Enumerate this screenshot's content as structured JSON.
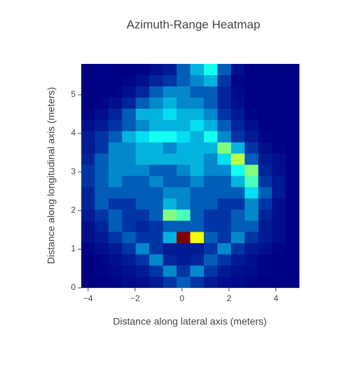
{
  "chart_data": {
    "type": "heatmap",
    "title": "Azimuth-Range Heatmap",
    "x_label": "Distance along lateral axis (meters)",
    "y_label": "Distance along longitudinal axis (meters)",
    "colorscale": "Jet",
    "x": [
      -4.0,
      -3.42,
      -2.84,
      -2.26,
      -1.68,
      -1.1,
      -0.52,
      0.06,
      0.64,
      1.22,
      1.8,
      2.38,
      2.96,
      3.54,
      4.12,
      4.7
    ],
    "y": [
      0.15,
      0.44,
      0.73,
      1.02,
      1.31,
      1.6,
      1.89,
      2.18,
      2.47,
      2.76,
      3.05,
      3.34,
      3.63,
      3.92,
      4.21,
      4.5,
      4.79,
      5.08,
      5.37,
      5.66
    ],
    "z": [
      [
        0.05,
        0.05,
        0.06,
        0.07,
        0.08,
        0.1,
        0.15,
        0.2,
        0.15,
        0.1,
        0.08,
        0.07,
        0.06,
        0.05,
        0.05,
        0.05
      ],
      [
        0.05,
        0.06,
        0.07,
        0.08,
        0.1,
        0.15,
        0.25,
        0.15,
        0.25,
        0.15,
        0.1,
        0.08,
        0.07,
        0.06,
        0.05,
        0.05
      ],
      [
        0.05,
        0.06,
        0.08,
        0.1,
        0.15,
        0.25,
        0.12,
        0.1,
        0.12,
        0.2,
        0.15,
        0.1,
        0.08,
        0.06,
        0.05,
        0.05
      ],
      [
        0.06,
        0.08,
        0.1,
        0.15,
        0.25,
        0.15,
        0.1,
        0.1,
        0.1,
        0.15,
        0.25,
        0.15,
        0.1,
        0.08,
        0.06,
        0.05
      ],
      [
        0.08,
        0.1,
        0.15,
        0.2,
        0.15,
        0.15,
        0.3,
        0.95,
        0.6,
        0.2,
        0.15,
        0.25,
        0.15,
        0.1,
        0.08,
        0.05
      ],
      [
        0.08,
        0.12,
        0.2,
        0.15,
        0.12,
        0.15,
        0.2,
        0.2,
        0.2,
        0.15,
        0.15,
        0.2,
        0.2,
        0.1,
        0.08,
        0.05
      ],
      [
        0.1,
        0.15,
        0.2,
        0.15,
        0.15,
        0.2,
        0.5,
        0.45,
        0.2,
        0.15,
        0.15,
        0.2,
        0.25,
        0.12,
        0.08,
        0.05
      ],
      [
        0.12,
        0.2,
        0.15,
        0.15,
        0.2,
        0.2,
        0.3,
        0.25,
        0.2,
        0.2,
        0.15,
        0.15,
        0.25,
        0.15,
        0.08,
        0.05
      ],
      [
        0.12,
        0.2,
        0.2,
        0.2,
        0.2,
        0.2,
        0.25,
        0.25,
        0.2,
        0.2,
        0.2,
        0.2,
        0.35,
        0.2,
        0.1,
        0.05
      ],
      [
        0.15,
        0.2,
        0.25,
        0.2,
        0.2,
        0.25,
        0.2,
        0.2,
        0.25,
        0.2,
        0.2,
        0.3,
        0.45,
        0.15,
        0.1,
        0.05
      ],
      [
        0.15,
        0.2,
        0.25,
        0.25,
        0.25,
        0.2,
        0.2,
        0.25,
        0.3,
        0.25,
        0.25,
        0.4,
        0.5,
        0.12,
        0.08,
        0.05
      ],
      [
        0.12,
        0.2,
        0.25,
        0.25,
        0.3,
        0.3,
        0.3,
        0.3,
        0.3,
        0.25,
        0.35,
        0.55,
        0.2,
        0.1,
        0.08,
        0.05
      ],
      [
        0.1,
        0.15,
        0.25,
        0.25,
        0.3,
        0.3,
        0.25,
        0.3,
        0.3,
        0.3,
        0.5,
        0.3,
        0.15,
        0.08,
        0.06,
        0.05
      ],
      [
        0.1,
        0.15,
        0.2,
        0.3,
        0.35,
        0.4,
        0.4,
        0.35,
        0.3,
        0.4,
        0.25,
        0.15,
        0.1,
        0.06,
        0.05,
        0.05
      ],
      [
        0.08,
        0.1,
        0.15,
        0.2,
        0.25,
        0.3,
        0.3,
        0.3,
        0.35,
        0.3,
        0.2,
        0.12,
        0.08,
        0.05,
        0.05,
        0.05
      ],
      [
        0.06,
        0.08,
        0.12,
        0.2,
        0.3,
        0.3,
        0.35,
        0.3,
        0.3,
        0.25,
        0.15,
        0.1,
        0.06,
        0.05,
        0.05,
        0.05
      ],
      [
        0.05,
        0.06,
        0.08,
        0.12,
        0.2,
        0.25,
        0.3,
        0.25,
        0.25,
        0.2,
        0.12,
        0.08,
        0.05,
        0.05,
        0.05,
        0.05
      ],
      [
        0.05,
        0.05,
        0.06,
        0.08,
        0.12,
        0.2,
        0.25,
        0.25,
        0.2,
        0.2,
        0.12,
        0.07,
        0.05,
        0.05,
        0.05,
        0.05
      ],
      [
        0.05,
        0.05,
        0.05,
        0.06,
        0.08,
        0.12,
        0.15,
        0.2,
        0.25,
        0.3,
        0.15,
        0.06,
        0.05,
        0.05,
        0.05,
        0.05
      ],
      [
        0.05,
        0.05,
        0.05,
        0.05,
        0.06,
        0.08,
        0.1,
        0.2,
        0.3,
        0.4,
        0.2,
        0.08,
        0.05,
        0.05,
        0.05,
        0.05
      ]
    ],
    "xlim": [
      -4.29,
      4.99
    ],
    "ylim": [
      0,
      5.8
    ],
    "xticks": [
      {
        "value": -4,
        "label": "−4"
      },
      {
        "value": -2,
        "label": "−2"
      },
      0,
      2,
      4
    ],
    "yticks": [
      0,
      1,
      2,
      3,
      4,
      5
    ]
  }
}
